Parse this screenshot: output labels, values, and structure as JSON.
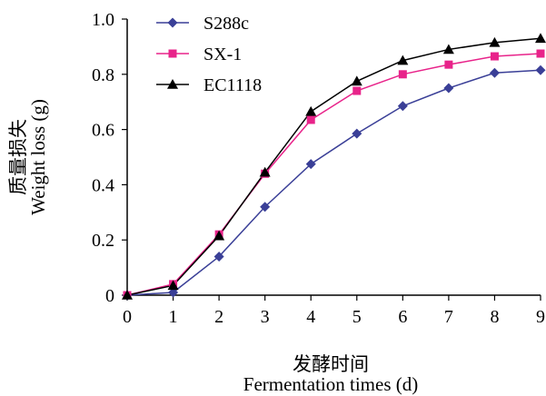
{
  "chart_data": {
    "type": "line",
    "x": [
      0,
      1,
      2,
      3,
      4,
      5,
      6,
      7,
      8,
      9
    ],
    "xlabel": [
      "发酵时间",
      "Fermentation times (d)"
    ],
    "ylabel": [
      "质量损失",
      "Weight loss (g)"
    ],
    "xlim": [
      0,
      9
    ],
    "ylim": [
      0,
      1.0
    ],
    "x_ticks": [
      "0",
      "1",
      "2",
      "3",
      "4",
      "5",
      "6",
      "7",
      "8",
      "9"
    ],
    "y_ticks": [
      "0",
      "0.2",
      "0.4",
      "0.6",
      "0.8",
      "1.0"
    ],
    "grid": false,
    "legend_position": "top-left",
    "series": [
      {
        "name": "S288c",
        "color": "#3a3f97",
        "marker": "diamond",
        "values": [
          0,
          0.01,
          0.14,
          0.32,
          0.475,
          0.585,
          0.685,
          0.75,
          0.805,
          0.815
        ]
      },
      {
        "name": "SX-1",
        "color": "#e8238a",
        "marker": "square",
        "values": [
          0,
          0.04,
          0.22,
          0.44,
          0.635,
          0.74,
          0.8,
          0.835,
          0.865,
          0.875
        ]
      },
      {
        "name": "EC1118",
        "color": "#000000",
        "marker": "triangle",
        "values": [
          0,
          0.035,
          0.215,
          0.445,
          0.665,
          0.775,
          0.85,
          0.89,
          0.915,
          0.93
        ]
      }
    ]
  }
}
